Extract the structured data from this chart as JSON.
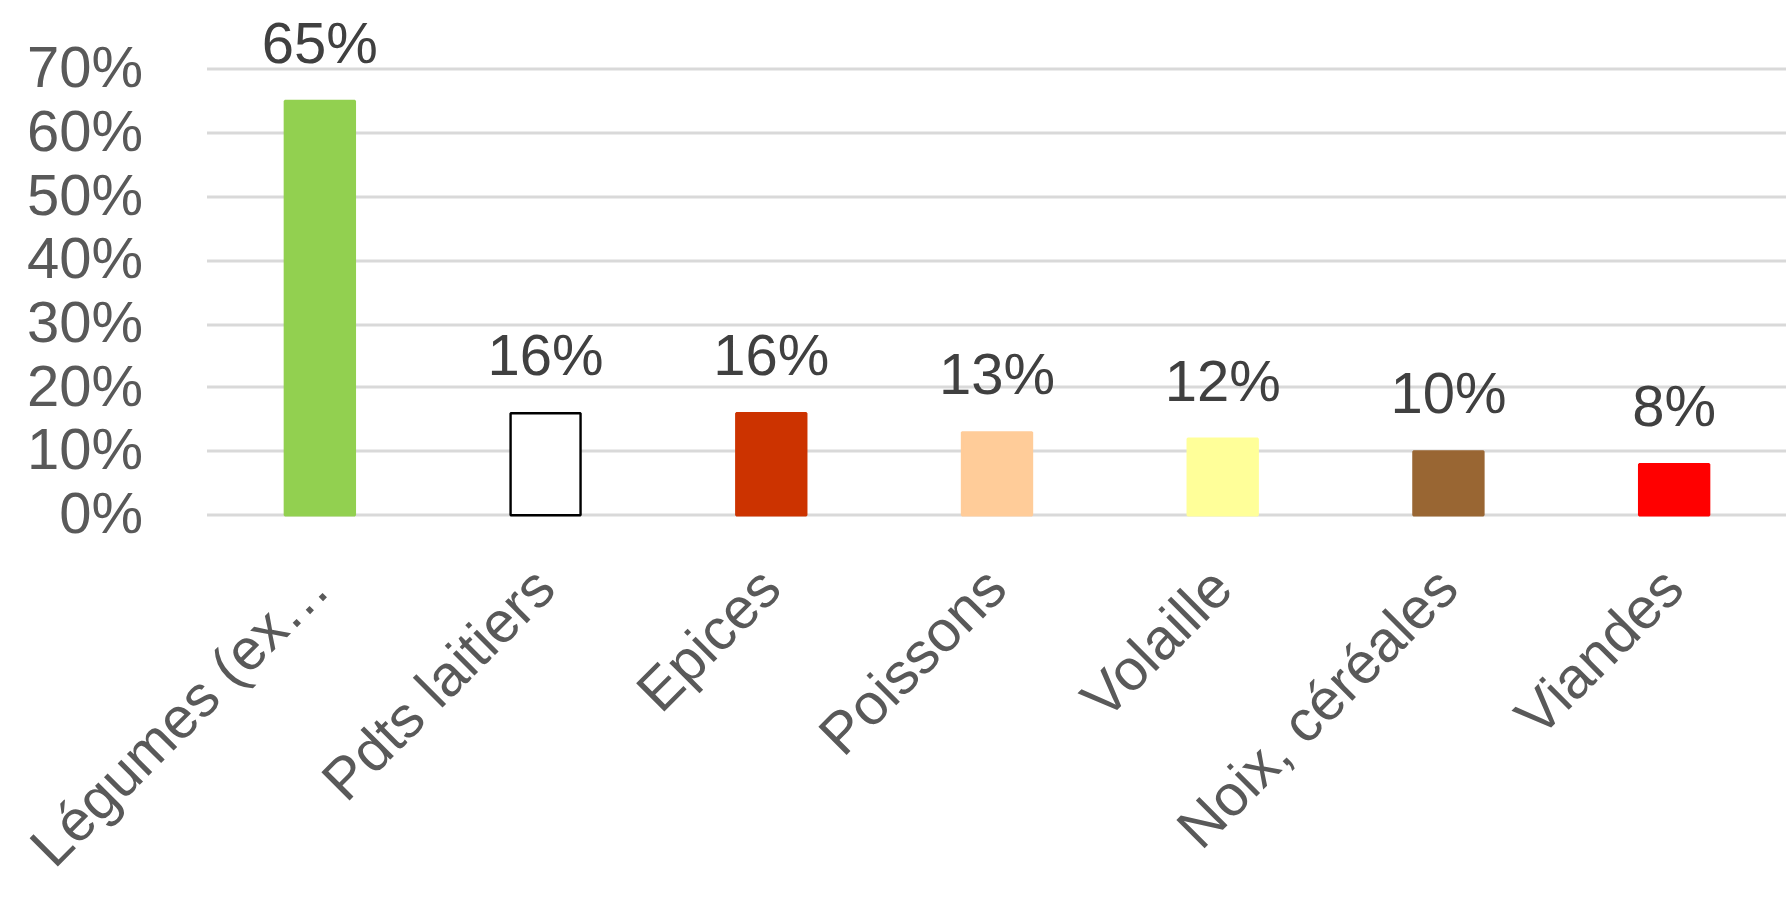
{
  "chart_data": {
    "type": "bar",
    "categories": [
      "Légumes (ex…",
      "Pdts laitiers",
      "Epices",
      "Poissons",
      "Volaille",
      "Noix, céréales",
      "Viandes"
    ],
    "values": [
      65,
      16,
      16,
      13,
      12,
      10,
      8
    ],
    "value_labels": [
      "65%",
      "16%",
      "16%",
      "13%",
      "12%",
      "10%",
      "8%"
    ],
    "colors": [
      "#92d050",
      "#ffffff",
      "#cc3300",
      "#ffcc99",
      "#ffff99",
      "#996633",
      "#ff0000"
    ],
    "ylim": [
      0,
      70
    ],
    "yticks": [
      {
        "value": 0,
        "label": "0%"
      },
      {
        "value": 10,
        "label": "10%"
      },
      {
        "value": 20,
        "label": "20%"
      },
      {
        "value": 30,
        "label": "30%"
      },
      {
        "value": 40,
        "label": "40%"
      },
      {
        "value": 50,
        "label": "50%"
      },
      {
        "value": 60,
        "label": "60%"
      },
      {
        "value": 70,
        "label": "70%"
      }
    ],
    "grid": "y"
  }
}
